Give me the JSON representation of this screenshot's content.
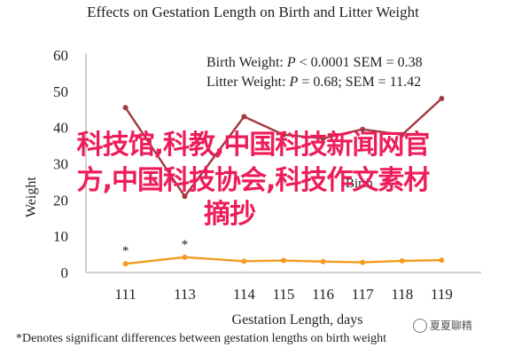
{
  "chart_data": {
    "type": "line",
    "title": "Effects on Gestation Length on Birth and Litter Weight",
    "xlabel": "Gestation Length, days",
    "ylabel": "Weight",
    "x_ticks": [
      "111",
      "113",
      "114",
      "115",
      "116",
      "117",
      "118",
      "119"
    ],
    "x": [
      111,
      112.5,
      114,
      115,
      116,
      117,
      118,
      119
    ],
    "ylim": [
      0,
      60
    ],
    "y_ticks": [
      0,
      10,
      20,
      30,
      40,
      50,
      60
    ],
    "grid": false,
    "series": [
      {
        "name": "Litter Weight",
        "color": "#a23a3f",
        "values": [
          45.5,
          21.0,
          43.0,
          38.0,
          37.0,
          39.5,
          38.0,
          48.0
        ]
      },
      {
        "name": "Birth Weight",
        "color": "#f39a1f",
        "values": [
          2.4,
          4.2,
          3.1,
          3.3,
          3.0,
          2.8,
          3.2,
          3.4
        ]
      }
    ],
    "significance_markers": [
      {
        "x": 111,
        "label": "*"
      },
      {
        "x": 112.5,
        "label": "*"
      }
    ],
    "stats": [
      {
        "label": "Birth Weight: ",
        "p_symbol": "P",
        "rest": " < 0.0001 SEM = 0.38"
      },
      {
        "label": "Litter Weight: ",
        "p_symbol": "P",
        "rest": " = 0.68; SEM = 11.42"
      }
    ],
    "legend_fragment": "Birth",
    "footnote": "*Denotes significant differences between gestation lengths on birth weight"
  },
  "overlay": {
    "line1": "科技馆,科教,中国科技新闻网官",
    "line2": "方,中国科技协会,科技作文素材",
    "line3": "摘抄"
  },
  "watermark": {
    "text": "夏夏聊精",
    "icon": "chat-bubble-icon"
  }
}
